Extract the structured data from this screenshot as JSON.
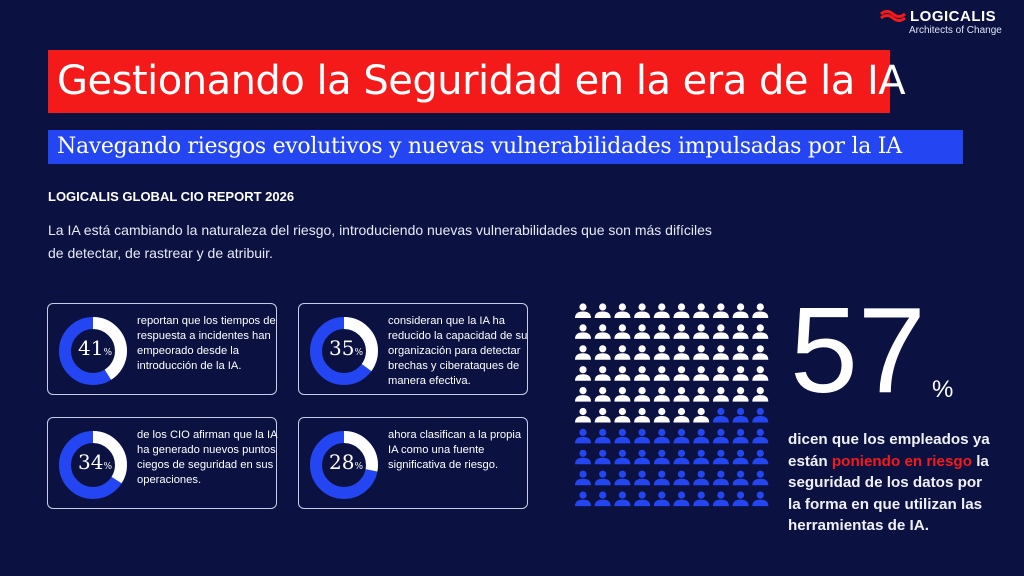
{
  "logo": {
    "name": "LOGICALIS",
    "tagline": "Architects of Change"
  },
  "title": "Gestionando la Seguridad en la era de la IA",
  "subtitle": "Navegando riesgos evolutivos y nuevas vulnerabilidades impulsadas por la IA",
  "report": "LOGICALIS GLOBAL CIO REPORT 2026",
  "intro": "La IA está cambiando la naturaleza del riesgo, introduciendo nuevas vulnerabilidades que son más difíciles de detectar, de rastrear y de atribuir.",
  "colors": {
    "background": "#0b1241",
    "red": "#f51a1a",
    "blue": "#2446f2",
    "white": "#ffffff"
  },
  "stats": [
    {
      "value": "41",
      "unit": "%",
      "percent": 41,
      "text": "reportan que los tiempos de respuesta a incidentes han empeorado desde la introducción de la IA."
    },
    {
      "value": "35",
      "unit": "%",
      "percent": 35,
      "text": "consideran que la IA ha reducido la capacidad de su organización para detectar brechas y ciberataques de manera efectiva."
    },
    {
      "value": "34",
      "unit": "%",
      "percent": 34,
      "text": "de los CIO afirman que la IA ha generado nuevos puntos ciegos de seguridad en sus operaciones."
    },
    {
      "value": "28",
      "unit": "%",
      "percent": 28,
      "text": "ahora clasifican a la propia IA como una fuente significativa de riesgo."
    }
  ],
  "highlight": {
    "value": "57",
    "unit": "%",
    "percent": 57,
    "text_before": "dicen que los empleados ya están ",
    "text_red": "poniendo en riesgo",
    "text_after": " la seguridad de los datos por la forma en que utilizan las herramientas de IA.",
    "icon": "person-icon"
  }
}
